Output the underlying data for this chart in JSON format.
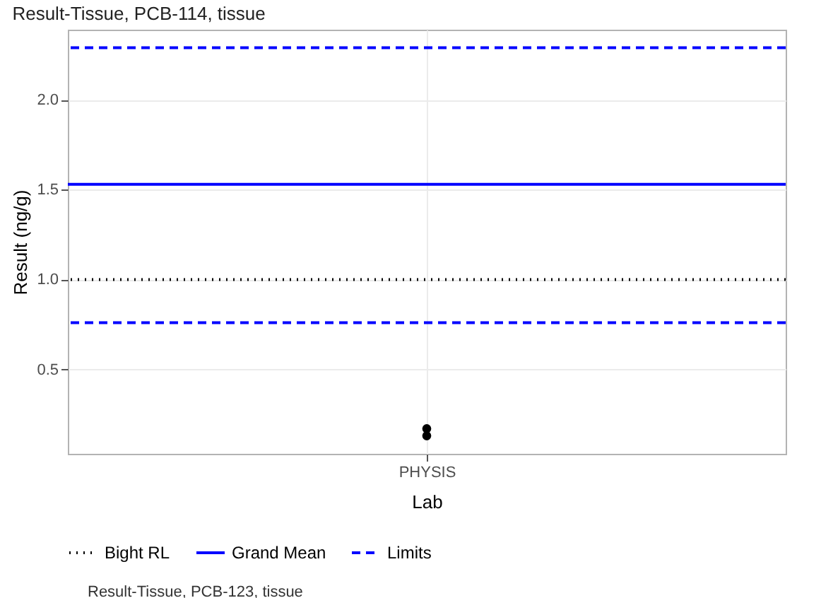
{
  "chart_data": {
    "type": "scatter",
    "title": "Result-Tissue, PCB-114, tissue",
    "xlabel": "Lab",
    "ylabel": "Result (ng/g)",
    "categories": [
      "PHYSIS"
    ],
    "series": [
      {
        "color": "#000000",
        "x": [
          "PHYSIS",
          "PHYSIS"
        ],
        "values": [
          0.17,
          0.13
        ]
      }
    ],
    "ylim": [
      0.03,
      2.39
    ],
    "yticks": [
      {
        "value": 0.5,
        "label": "0.5"
      },
      {
        "value": 1,
        "label": "1.0"
      },
      {
        "value": 1.5,
        "label": "1.5"
      },
      {
        "value": 2,
        "label": "2.0"
      }
    ],
    "ref_lines": [
      {
        "axis": "y",
        "value": 1.0,
        "label": "Bight RL",
        "color": "#000000",
        "line_style": "dotted"
      },
      {
        "axis": "y",
        "value": 1.53,
        "label": "Grand Mean",
        "color": "#0000ff",
        "line_style": "solid"
      },
      {
        "axis": "y",
        "value": 2.29,
        "label": "Limits",
        "color": "#0000ff",
        "line_style": "dashed"
      },
      {
        "axis": "y",
        "value": 0.76,
        "color": "#0000ff",
        "line_style": "dashed"
      }
    ],
    "annotations": [
      "Result-Tissue, PCB-123, tissue"
    ],
    "grid": true,
    "legend": "bottom",
    "marker": "circle"
  }
}
